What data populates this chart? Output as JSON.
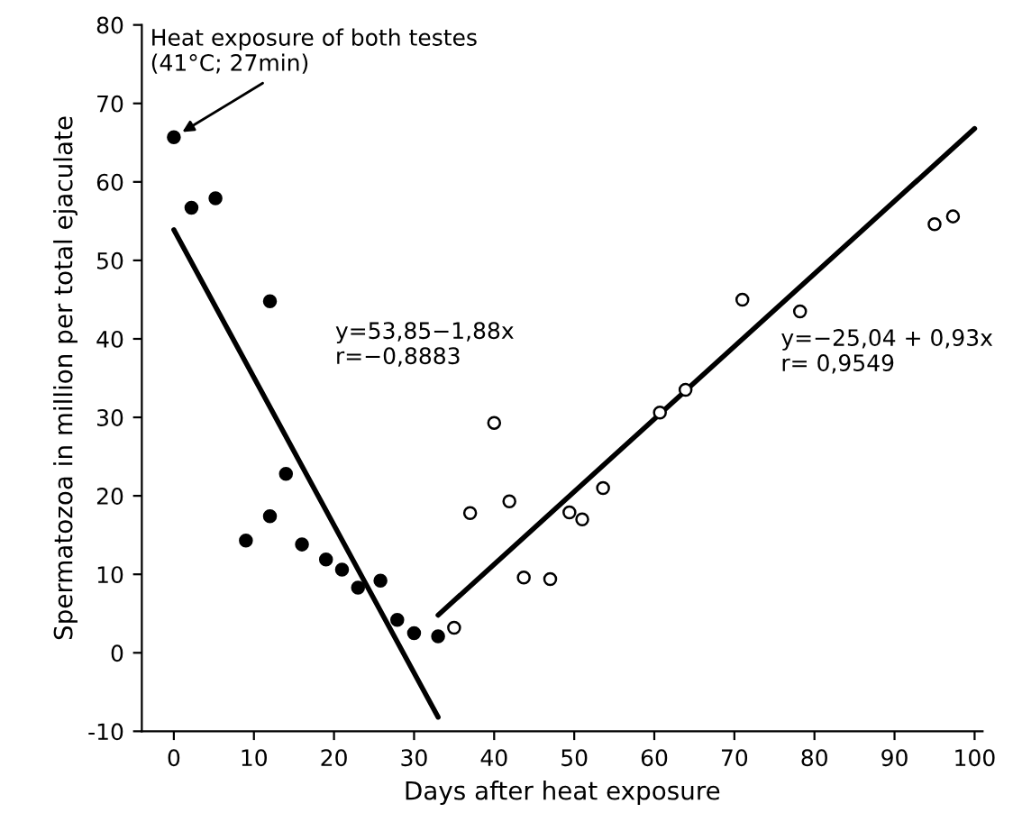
{
  "chart_data": {
    "type": "scatter",
    "xlabel": "Days after heat exposure",
    "ylabel": "Spermatozoa in million per total ejaculate",
    "xlim": [
      -4,
      101
    ],
    "ylim": [
      -10,
      80
    ],
    "xticks": [
      0,
      10,
      20,
      30,
      40,
      50,
      60,
      70,
      80,
      90,
      100
    ],
    "yticks": [
      -10,
      0,
      10,
      20,
      30,
      40,
      50,
      60,
      70,
      80
    ],
    "grid": false,
    "legend": false,
    "series": [
      {
        "marker": "circle",
        "color": "#000000",
        "x": [
          0,
          2.2,
          5.2,
          12,
          9,
          12,
          14,
          16,
          19,
          21,
          23,
          25.8,
          27.9,
          30,
          33
        ],
        "values": [
          65.7,
          56.7,
          57.9,
          44.8,
          14.3,
          17.4,
          22.8,
          13.8,
          11.9,
          10.6,
          8.3,
          9.2,
          4.2,
          2.5,
          2.1
        ]
      },
      {
        "marker": "circle",
        "color": "#ffffff",
        "x": [
          35,
          37,
          40,
          41.9,
          43.7,
          47,
          49.4,
          51,
          53.6,
          60.7,
          63.9,
          71,
          78.2,
          95,
          97.3
        ],
        "values": [
          3.2,
          17.8,
          29.3,
          19.3,
          9.6,
          9.4,
          17.9,
          17,
          21,
          30.6,
          33.5,
          45,
          43.5,
          54.6,
          55.6
        ]
      },
      {
        "type": "line",
        "color": "#000000",
        "x": [
          0,
          33
        ],
        "values": [
          53.9,
          -8.2
        ]
      },
      {
        "type": "line",
        "color": "#000000",
        "x": [
          33,
          100
        ],
        "values": [
          4.8,
          66.8
        ]
      }
    ],
    "annotations": [
      {
        "text": "Heat exposure of both testes\n(41°C; 27min)",
        "x": 0,
        "y": 65.7
      },
      "y=53,85−1,88x\nr=−0,8883",
      "y=−25,04 + 0,93x\nr= 0,9549"
    ]
  }
}
